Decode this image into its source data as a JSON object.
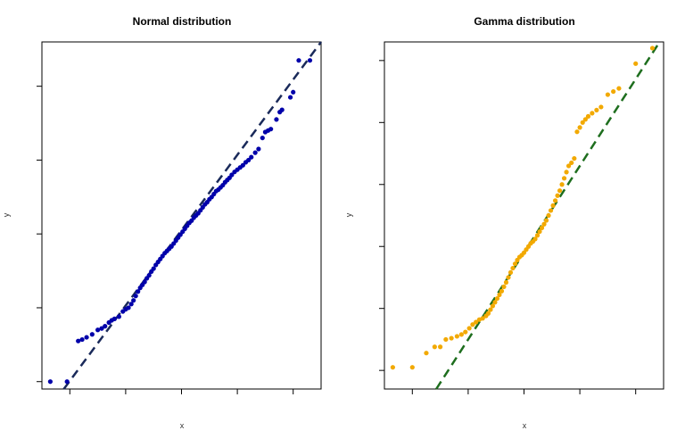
{
  "chart_data": [
    {
      "type": "scatter",
      "title": "Normal distribution",
      "xlabel": "x",
      "ylabel": "y",
      "xlim": [
        -2.5,
        2.5
      ],
      "ylim": [
        -2.1,
        2.6
      ],
      "grid": false,
      "legend": "none",
      "point_color": "#0000aa",
      "line_color": "#1a2a5a",
      "reference_line": {
        "style": "dashed",
        "slope": 1.02,
        "intercept": 0.05
      },
      "series": [
        {
          "values": [
            [
              -2.35,
              -2.0
            ],
            [
              -2.05,
              -2.0
            ],
            [
              -1.85,
              -1.45
            ],
            [
              -1.78,
              -1.43
            ],
            [
              -1.7,
              -1.4
            ],
            [
              -1.6,
              -1.36
            ],
            [
              -1.5,
              -1.3
            ],
            [
              -1.43,
              -1.28
            ],
            [
              -1.37,
              -1.25
            ],
            [
              -1.3,
              -1.2
            ],
            [
              -1.25,
              -1.17
            ],
            [
              -1.2,
              -1.15
            ],
            [
              -1.12,
              -1.12
            ],
            [
              -1.05,
              -1.05
            ],
            [
              -1.0,
              -1.02
            ],
            [
              -0.95,
              -1.0
            ],
            [
              -0.9,
              -0.95
            ],
            [
              -0.86,
              -0.9
            ],
            [
              -0.82,
              -0.84
            ],
            [
              -0.78,
              -0.78
            ],
            [
              -0.74,
              -0.73
            ],
            [
              -0.7,
              -0.69
            ],
            [
              -0.66,
              -0.65
            ],
            [
              -0.62,
              -0.6
            ],
            [
              -0.58,
              -0.56
            ],
            [
              -0.54,
              -0.51
            ],
            [
              -0.5,
              -0.47
            ],
            [
              -0.46,
              -0.42
            ],
            [
              -0.42,
              -0.38
            ],
            [
              -0.38,
              -0.34
            ],
            [
              -0.34,
              -0.3
            ],
            [
              -0.3,
              -0.26
            ],
            [
              -0.26,
              -0.23
            ],
            [
              -0.22,
              -0.2
            ],
            [
              -0.18,
              -0.17
            ],
            [
              -0.14,
              -0.13
            ],
            [
              -0.1,
              -0.09
            ],
            [
              -0.06,
              -0.05
            ],
            [
              -0.02,
              -0.01
            ],
            [
              0.02,
              0.03
            ],
            [
              0.06,
              0.07
            ],
            [
              0.1,
              0.11
            ],
            [
              0.14,
              0.15
            ],
            [
              0.18,
              0.18
            ],
            [
              0.22,
              0.22
            ],
            [
              0.26,
              0.25
            ],
            [
              0.3,
              0.28
            ],
            [
              0.34,
              0.32
            ],
            [
              0.38,
              0.36
            ],
            [
              0.42,
              0.4
            ],
            [
              0.46,
              0.43
            ],
            [
              0.5,
              0.47
            ],
            [
              0.54,
              0.5
            ],
            [
              0.58,
              0.54
            ],
            [
              0.62,
              0.58
            ],
            [
              0.66,
              0.6
            ],
            [
              0.7,
              0.63
            ],
            [
              0.74,
              0.66
            ],
            [
              0.78,
              0.7
            ],
            [
              0.82,
              0.73
            ],
            [
              0.86,
              0.76
            ],
            [
              0.9,
              0.8
            ],
            [
              0.95,
              0.84
            ],
            [
              1.0,
              0.87
            ],
            [
              1.05,
              0.9
            ],
            [
              1.1,
              0.93
            ],
            [
              1.15,
              0.97
            ],
            [
              1.2,
              1.0
            ],
            [
              1.25,
              1.04
            ],
            [
              1.32,
              1.1
            ],
            [
              1.38,
              1.15
            ],
            [
              1.45,
              1.3
            ],
            [
              1.5,
              1.38
            ],
            [
              1.55,
              1.4
            ],
            [
              1.6,
              1.42
            ],
            [
              1.7,
              1.55
            ],
            [
              1.76,
              1.65
            ],
            [
              1.8,
              1.68
            ],
            [
              1.95,
              1.85
            ],
            [
              2.0,
              1.92
            ],
            [
              2.1,
              2.35
            ],
            [
              2.3,
              2.35
            ]
          ]
        }
      ]
    },
    {
      "type": "scatter",
      "title": "Gamma distribution",
      "xlabel": "x",
      "ylabel": "y",
      "xlim": [
        -2.5,
        2.5
      ],
      "ylim": [
        -0.3,
        5.3
      ],
      "grid": false,
      "legend": "none",
      "point_color": "#f2a900",
      "line_color": "#1e6e1e",
      "reference_line": {
        "style": "dashed",
        "slope": 1.4,
        "intercept": 1.9
      },
      "series": [
        {
          "values": [
            [
              -2.35,
              0.05
            ],
            [
              -2.0,
              0.05
            ],
            [
              -1.75,
              0.28
            ],
            [
              -1.6,
              0.38
            ],
            [
              -1.5,
              0.38
            ],
            [
              -1.4,
              0.5
            ],
            [
              -1.3,
              0.52
            ],
            [
              -1.2,
              0.55
            ],
            [
              -1.12,
              0.58
            ],
            [
              -1.05,
              0.62
            ],
            [
              -0.98,
              0.68
            ],
            [
              -0.92,
              0.74
            ],
            [
              -0.86,
              0.78
            ],
            [
              -0.8,
              0.82
            ],
            [
              -0.74,
              0.84
            ],
            [
              -0.68,
              0.88
            ],
            [
              -0.64,
              0.92
            ],
            [
              -0.6,
              0.98
            ],
            [
              -0.56,
              1.04
            ],
            [
              -0.52,
              1.1
            ],
            [
              -0.48,
              1.16
            ],
            [
              -0.44,
              1.22
            ],
            [
              -0.4,
              1.28
            ],
            [
              -0.36,
              1.35
            ],
            [
              -0.32,
              1.42
            ],
            [
              -0.28,
              1.5
            ],
            [
              -0.24,
              1.58
            ],
            [
              -0.2,
              1.65
            ],
            [
              -0.16,
              1.72
            ],
            [
              -0.12,
              1.78
            ],
            [
              -0.08,
              1.83
            ],
            [
              -0.04,
              1.86
            ],
            [
              0.0,
              1.9
            ],
            [
              0.04,
              1.95
            ],
            [
              0.08,
              2.0
            ],
            [
              0.12,
              2.05
            ],
            [
              0.16,
              2.08
            ],
            [
              0.2,
              2.12
            ],
            [
              0.24,
              2.18
            ],
            [
              0.28,
              2.24
            ],
            [
              0.32,
              2.3
            ],
            [
              0.36,
              2.36
            ],
            [
              0.4,
              2.42
            ],
            [
              0.44,
              2.5
            ],
            [
              0.48,
              2.58
            ],
            [
              0.52,
              2.66
            ],
            [
              0.56,
              2.74
            ],
            [
              0.6,
              2.82
            ],
            [
              0.64,
              2.9
            ],
            [
              0.68,
              3.0
            ],
            [
              0.72,
              3.1
            ],
            [
              0.76,
              3.2
            ],
            [
              0.8,
              3.3
            ],
            [
              0.85,
              3.35
            ],
            [
              0.9,
              3.42
            ],
            [
              0.95,
              3.85
            ],
            [
              1.0,
              3.92
            ],
            [
              1.05,
              4.0
            ],
            [
              1.1,
              4.05
            ],
            [
              1.15,
              4.1
            ],
            [
              1.22,
              4.15
            ],
            [
              1.3,
              4.2
            ],
            [
              1.38,
              4.25
            ],
            [
              1.5,
              4.45
            ],
            [
              1.6,
              4.5
            ],
            [
              1.7,
              4.55
            ],
            [
              2.0,
              4.95
            ],
            [
              2.3,
              5.2
            ]
          ]
        }
      ]
    }
  ]
}
